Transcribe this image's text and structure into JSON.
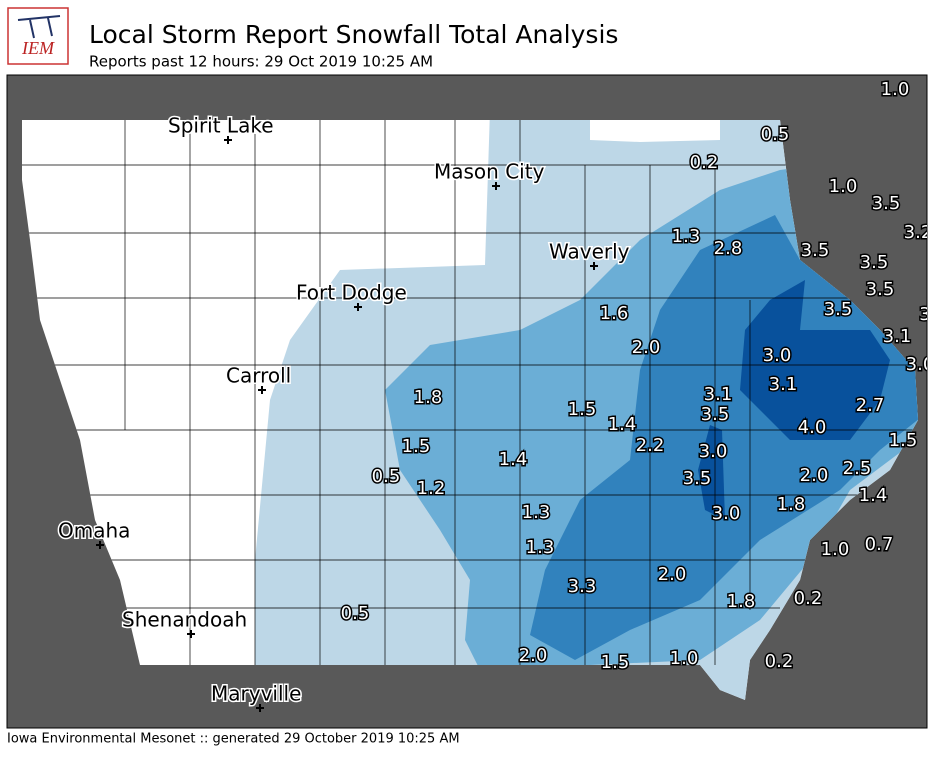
{
  "header": {
    "logo": "IEM",
    "title": "Local Storm Report Snowfall Total Analysis",
    "subtitle": "Reports past 12 hours: 29 Oct 2019 10:25 AM"
  },
  "cities": [
    "Spirit Lake",
    "Mason City",
    "Waverly",
    "Fort Dodge",
    "Carroll",
    "Omaha",
    "Shenandoah",
    "Maryville"
  ],
  "reports": [
    "1.0",
    "0.5",
    "0.2",
    "1.0",
    "3.5",
    "3.2",
    "1.3",
    "2.8",
    "3.5",
    "3.5",
    "3.5",
    "3.5",
    "3",
    "3.1",
    "3.0",
    "1.6",
    "2.0",
    "3.0",
    "3.1",
    "1.8",
    "1.5",
    "3.1",
    "1.4",
    "3.5",
    "2.7",
    "4.0",
    "1.5",
    "1.5",
    "2.2",
    "3.0",
    "1.4",
    "2.5",
    "0.5",
    "1.2",
    "3.5",
    "2.0",
    "1.4",
    "1.8",
    "3.0",
    "1.3",
    "1.0",
    "0.7",
    "1.3",
    "2.0",
    "3.3",
    "0.2",
    "1.8",
    "0.5",
    "2.0",
    "1.5",
    "1.0",
    "0.2"
  ],
  "footer": "Iowa Environmental Mesonet :: generated 29 October 2019 10:25 AM"
}
